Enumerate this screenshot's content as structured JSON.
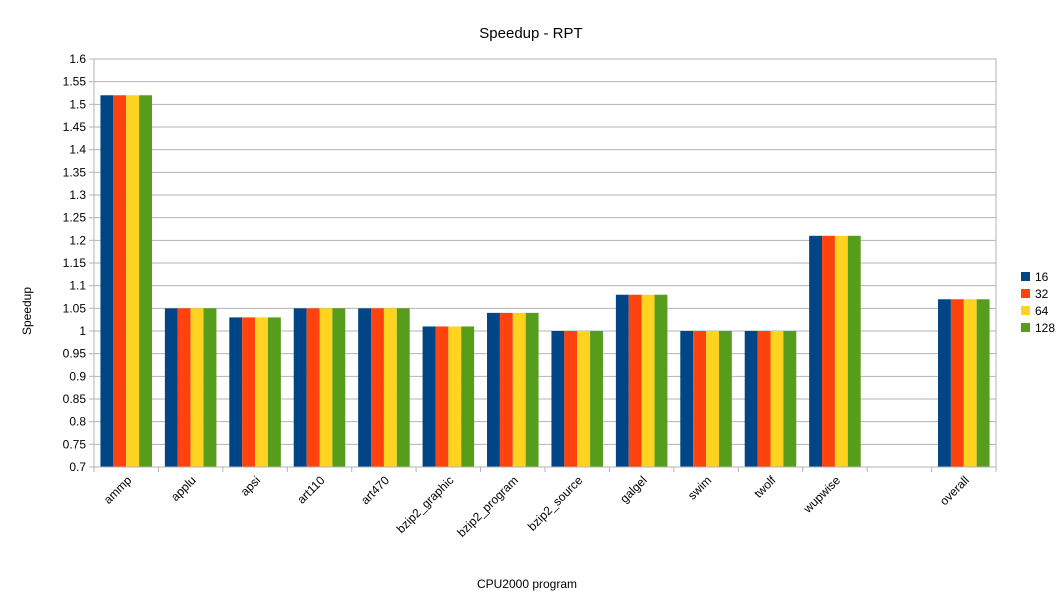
{
  "chart_data": {
    "type": "bar",
    "title": "Speedup - RPT",
    "xlabel": "CPU2000 program",
    "ylabel": "Speedup",
    "ylim": [
      0.7,
      1.6
    ],
    "ytick_step": 0.05,
    "yticks": [
      "0.7",
      "0.75",
      "0.8",
      "0.85",
      "0.9",
      "0.95",
      "1",
      "1.05",
      "1.1",
      "1.15",
      "1.2",
      "1.25",
      "1.3",
      "1.35",
      "1.4",
      "1.45",
      "1.5",
      "1.55",
      "1.6"
    ],
    "grid": true,
    "legend_position": "right",
    "categories": [
      "ammp",
      "applu",
      "apsi",
      "art110",
      "art470",
      "bzip2_graphic",
      "bzip2_program",
      "bzip2_source",
      "galgel",
      "swim",
      "twolf",
      "wupwise",
      "",
      "overall"
    ],
    "series": [
      {
        "name": "16",
        "color": "#004586",
        "values": [
          1.52,
          1.05,
          1.03,
          1.05,
          1.05,
          1.01,
          1.04,
          1.0,
          1.08,
          1.0,
          1.0,
          1.21,
          null,
          1.07
        ]
      },
      {
        "name": "32",
        "color": "#ff420e",
        "values": [
          1.52,
          1.05,
          1.03,
          1.05,
          1.05,
          1.01,
          1.04,
          1.0,
          1.08,
          1.0,
          1.0,
          1.21,
          null,
          1.07
        ]
      },
      {
        "name": "64",
        "color": "#ffd320",
        "values": [
          1.52,
          1.05,
          1.03,
          1.05,
          1.05,
          1.01,
          1.04,
          1.0,
          1.08,
          1.0,
          1.0,
          1.21,
          null,
          1.07
        ]
      },
      {
        "name": "128",
        "color": "#579d1c",
        "values": [
          1.52,
          1.05,
          1.03,
          1.05,
          1.05,
          1.01,
          1.04,
          1.0,
          1.08,
          1.0,
          1.0,
          1.21,
          null,
          1.07
        ]
      }
    ]
  }
}
